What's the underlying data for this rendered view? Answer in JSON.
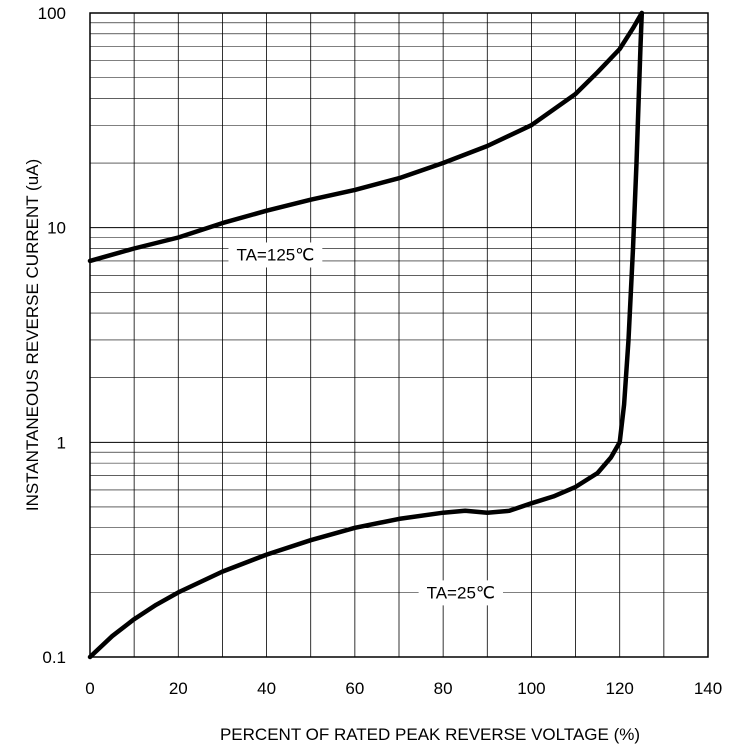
{
  "chart_data": {
    "type": "line",
    "title": "",
    "xlabel": "PERCENT OF RATED PEAK REVERSE VOLTAGE (%)",
    "ylabel": "INSTANTANEOUS REVERSE CURRENT (uA)",
    "xlim": [
      0,
      140
    ],
    "ylim": [
      0.1,
      100
    ],
    "y_scale": "log",
    "grid": true,
    "legend": "none",
    "x_ticks": [
      "0",
      "20",
      "40",
      "60",
      "80",
      "100",
      "120",
      "140"
    ],
    "y_ticks": [
      "0.1",
      "1",
      "10",
      "100"
    ],
    "series": [
      {
        "name": "TA=125℃",
        "x": [
          0,
          10,
          20,
          30,
          40,
          50,
          60,
          70,
          80,
          90,
          100,
          110,
          115,
          120,
          123,
          125
        ],
        "y": [
          7,
          8,
          9,
          10.5,
          12,
          13.5,
          15,
          17,
          20,
          24,
          30,
          42,
          53,
          68,
          85,
          100
        ]
      },
      {
        "name": "TA=25℃",
        "x": [
          0,
          5,
          10,
          15,
          20,
          30,
          40,
          50,
          60,
          70,
          80,
          85,
          90,
          95,
          100,
          105,
          110,
          115,
          118,
          120,
          121,
          122,
          123,
          123.8,
          124.3,
          124.7,
          125
        ],
        "y": [
          0.1,
          0.125,
          0.15,
          0.175,
          0.2,
          0.25,
          0.3,
          0.35,
          0.4,
          0.44,
          0.47,
          0.48,
          0.47,
          0.48,
          0.52,
          0.56,
          0.62,
          0.72,
          0.85,
          1.0,
          1.5,
          3,
          8,
          20,
          40,
          70,
          100
        ]
      }
    ],
    "annotations": [
      {
        "text": "TA=125℃",
        "x": 42,
        "y": 7.5
      },
      {
        "text": "TA=25℃",
        "x": 84,
        "y": 0.2
      }
    ]
  }
}
